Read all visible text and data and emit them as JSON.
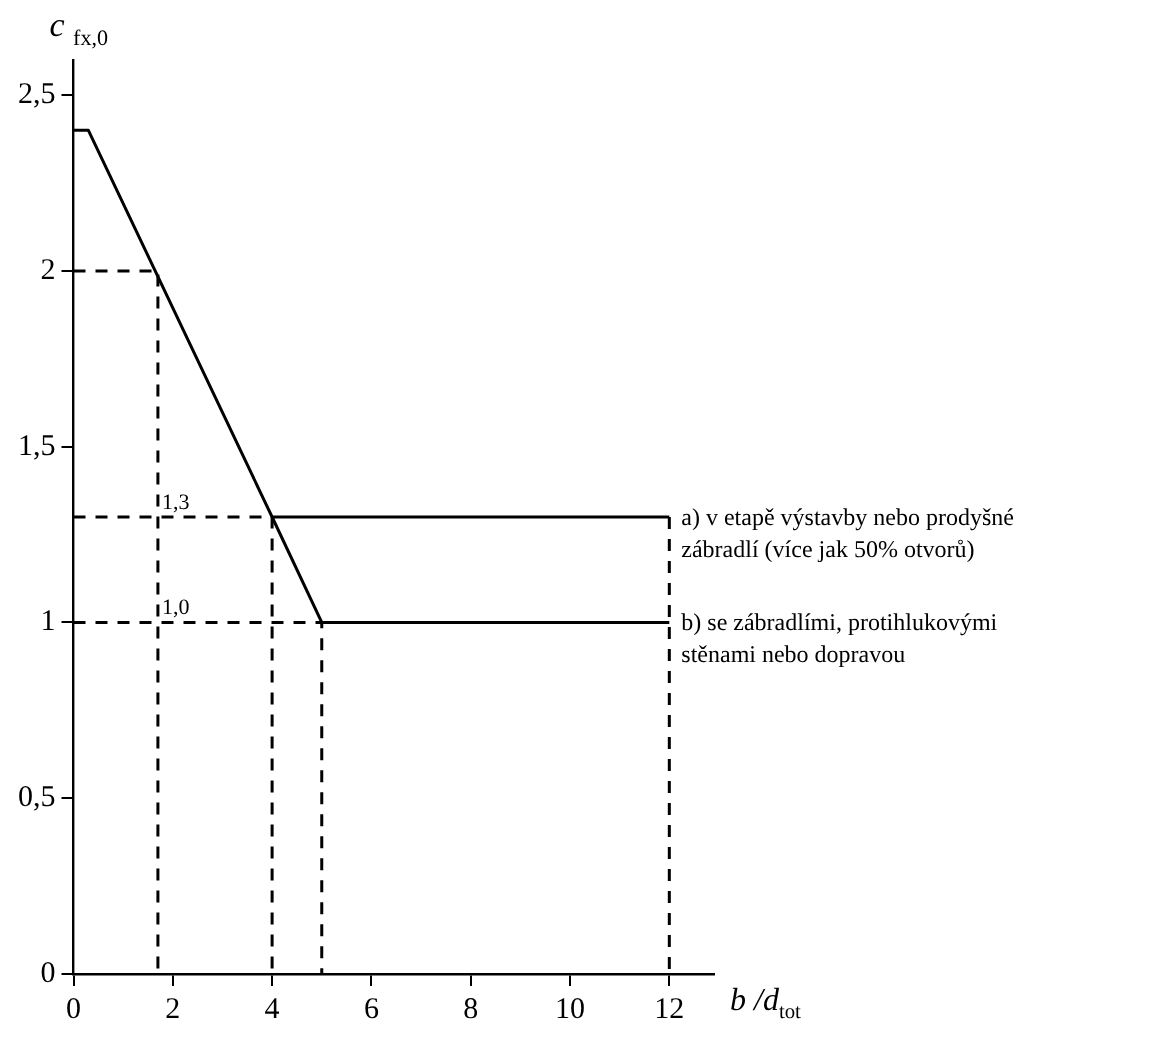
{
  "chart_data": {
    "type": "line",
    "xlabel": "b /d$_{tot}$",
    "ylabel": "c $_{fx,0}$",
    "xlim": [
      0,
      12.9
    ],
    "xticks": [
      0,
      2,
      4,
      6,
      8,
      10,
      12
    ],
    "ylim": [
      0,
      2.6
    ],
    "yticks": [
      {
        "value": 0,
        "label": "0"
      },
      {
        "value": 0.5,
        "label": "0,5"
      },
      {
        "value": 1,
        "label": "1"
      },
      {
        "value": 1.5,
        "label": "1,5"
      },
      {
        "value": 2,
        "label": "2"
      },
      {
        "value": 2.5,
        "label": "2,5"
      }
    ],
    "grid": false,
    "legend": false,
    "marker": "none",
    "line_style": "solid",
    "series": [
      {
        "name": "a) v etapě výstavby nebo prodyšné zábradlí (více jak 50% otvorů)",
        "color": "#000000",
        "x": [
          0,
          0.3,
          4,
          12
        ],
        "values": [
          2.4,
          2.4,
          1.3,
          1.3
        ]
      },
      {
        "name": "b) se zábradlími, protihlukovými stěnami nebo dopravou",
        "color": "#000000",
        "x": [
          4,
          5,
          12
        ],
        "values": [
          1.3,
          1.0,
          1.0
        ]
      },
      {
        "color": "#000000",
        "line_style": "dashed",
        "x": [
          0,
          1.7,
          1.7
        ],
        "values": [
          2,
          2,
          0
        ]
      },
      {
        "color": "#000000",
        "line_style": "dashed",
        "x": [
          0,
          4,
          4
        ],
        "values": [
          1.3,
          1.3,
          0
        ]
      },
      {
        "color": "#000000",
        "line_style": "dashed",
        "x": [
          0,
          5,
          5
        ],
        "values": [
          1,
          1,
          0
        ]
      },
      {
        "color": "#000000",
        "line_style": "dashed",
        "x": [
          12,
          12
        ],
        "values": [
          1.3,
          0
        ]
      }
    ],
    "annotations": [
      {
        "text": "1,3",
        "x": 1.7,
        "y": 1.3
      },
      {
        "text": "1,0",
        "x": 1.7,
        "y": 1
      }
    ]
  }
}
